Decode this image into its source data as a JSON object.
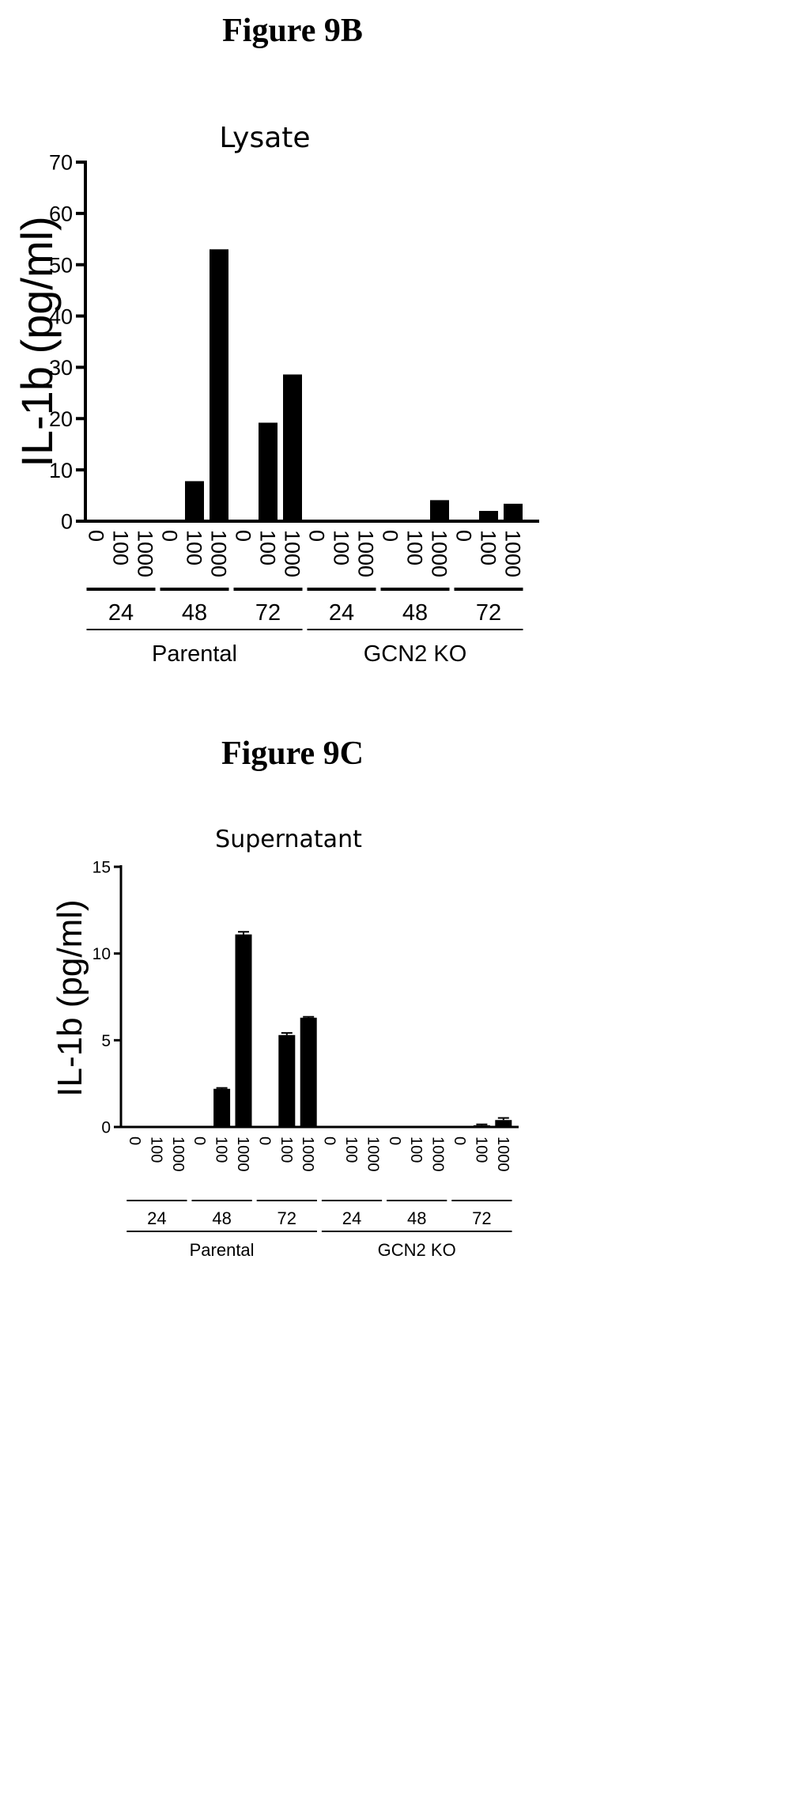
{
  "chart_data": [
    {
      "type": "bar",
      "figure_label": "Figure 9B",
      "title": "Lysate",
      "ylabel": "IL-1b (pg/ml)",
      "ylim": [
        0,
        70
      ],
      "yticks": [
        0,
        10,
        20,
        30,
        40,
        50,
        60,
        70
      ],
      "categories": [
        "0",
        "100",
        "1000",
        "0",
        "100",
        "1000",
        "0",
        "100",
        "1000",
        "0",
        "100",
        "1000",
        "0",
        "100",
        "1000",
        "0",
        "100",
        "1000"
      ],
      "values": [
        0,
        0,
        0.3,
        0,
        7.8,
        53,
        0,
        19.2,
        28.6,
        0,
        0,
        0,
        0,
        0,
        4.1,
        0,
        2.0,
        3.4
      ],
      "time_groups": [
        "24",
        "48",
        "72",
        "24",
        "48",
        "72"
      ],
      "cell_groups": [
        "Parental",
        "GCN2 KO"
      ]
    },
    {
      "type": "bar",
      "figure_label": "Figure 9C",
      "title": "Supernatant",
      "ylabel": "IL-1b (pg/ml)",
      "ylim": [
        0,
        15
      ],
      "yticks": [
        0,
        5,
        10,
        15
      ],
      "categories": [
        "0",
        "100",
        "1000",
        "0",
        "100",
        "1000",
        "0",
        "100",
        "1000",
        "0",
        "100",
        "1000",
        "0",
        "100",
        "1000",
        "0",
        "100",
        "1000"
      ],
      "values": [
        0,
        0,
        0,
        0,
        2.2,
        11.1,
        0,
        5.3,
        6.3,
        0,
        0,
        0,
        0,
        0,
        0,
        0,
        0.1,
        0.4
      ],
      "errors": [
        0,
        0,
        0,
        0,
        0.05,
        0.15,
        0,
        0.12,
        0.05,
        0,
        0,
        0,
        0,
        0,
        0,
        0,
        0.05,
        0.12
      ],
      "time_groups": [
        "24",
        "48",
        "72",
        "24",
        "48",
        "72"
      ],
      "cell_groups": [
        "Parental",
        "GCN2 KO"
      ]
    }
  ]
}
